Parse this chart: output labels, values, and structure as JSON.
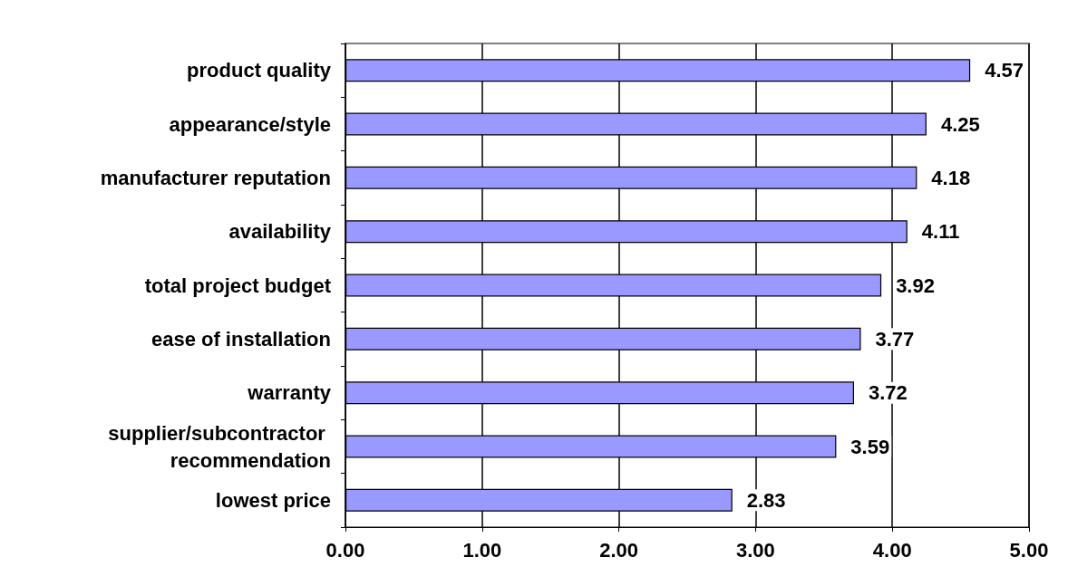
{
  "chart_data": {
    "type": "bar",
    "orientation": "horizontal",
    "categories": [
      "product quality",
      "appearance/style",
      "manufacturer reputation",
      "availability",
      "total project budget",
      "ease of installation",
      "warranty",
      "supplier/subcontractor recommendation",
      "lowest price"
    ],
    "values": [
      4.57,
      4.25,
      4.18,
      4.11,
      3.92,
      3.77,
      3.72,
      3.59,
      2.83
    ],
    "color": "#9999ff",
    "xlim": [
      0,
      5
    ],
    "xticks": [
      {
        "value": 0,
        "label": "0.00"
      },
      {
        "value": 1,
        "label": "1.00"
      },
      {
        "value": 2,
        "label": "2.00"
      },
      {
        "value": 3,
        "label": "3.00"
      },
      {
        "value": 4,
        "label": "4.00"
      },
      {
        "value": 5,
        "label": "5.00"
      }
    ],
    "grid": "x",
    "data_labels": true
  }
}
